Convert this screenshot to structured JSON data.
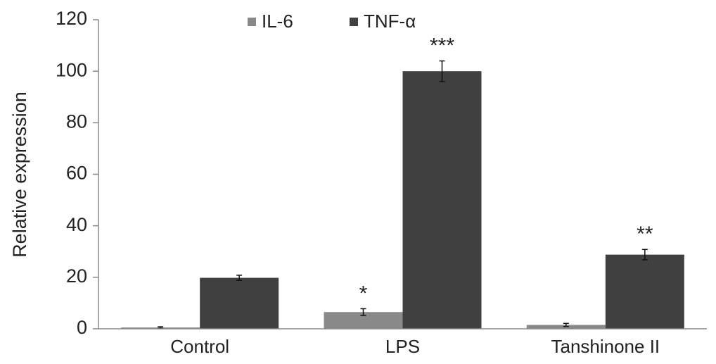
{
  "chart_data": {
    "type": "bar",
    "y_label": "Relative expression",
    "categories": [
      "Control",
      "LPS",
      "Tanshinone II"
    ],
    "series": [
      {
        "name": "IL-6",
        "color": "#898989",
        "values": [
          0.5,
          6.5,
          1.5
        ],
        "errors": [
          0.3,
          1.3,
          0.6
        ],
        "annotations": [
          null,
          "*",
          null
        ]
      },
      {
        "name": "TNF-α",
        "color": "#404040",
        "values": [
          19.8,
          100,
          28.8
        ],
        "errors": [
          1,
          4,
          2
        ],
        "annotations": [
          null,
          "***",
          "**"
        ]
      }
    ],
    "ylim": [
      0,
      120
    ],
    "yticks": [
      0,
      20,
      40,
      60,
      80,
      100,
      120
    ],
    "grid": false,
    "legend": "top"
  }
}
